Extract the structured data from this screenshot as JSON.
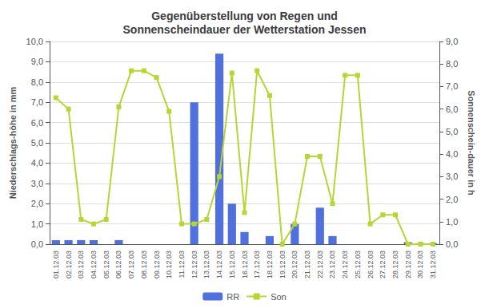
{
  "chart_data": {
    "type": "bar",
    "title": "Gegenüberstellung von Regen und\nSonnenscheindauer der Wetterstation Jessen",
    "ylabel": "Niederschlags-höhe in mm",
    "y2label": "Sonnenschein-dauer in h",
    "categories": [
      "01.12.03",
      "02.12.03",
      "03.12.03",
      "04.12.03",
      "05.12.03",
      "06.12.03",
      "07.12.03",
      "08.12.03",
      "09.12.03",
      "10.12.03",
      "11.12.03",
      "12.12.03",
      "13.12.03",
      "14.12.03",
      "15.12.03",
      "16.12.03",
      "17.12.03",
      "18.12.03",
      "19.12.03",
      "20.12.03",
      "21.12.03",
      "22.12.03",
      "23.12.03",
      "24.12.03",
      "25.12.03",
      "26.12.03",
      "27.12.03",
      "28.12.03",
      "29.12.03",
      "30.12.03",
      "31.12.03"
    ],
    "series": [
      {
        "name": "RR",
        "type": "bar",
        "values": [
          0.2,
          0.2,
          0.2,
          0.2,
          0.0,
          0.2,
          0.0,
          0.0,
          0.0,
          0.0,
          0.0,
          7.0,
          0.0,
          9.4,
          2.0,
          0.6,
          0.0,
          0.4,
          0.0,
          1.0,
          0.0,
          1.8,
          0.4,
          0.0,
          0.0,
          0.0,
          0.0,
          0.0,
          0.1,
          0.05,
          0.05
        ]
      },
      {
        "name": "Son",
        "type": "line",
        "axis": "y2",
        "marker": "square",
        "values": [
          6.5,
          6.0,
          1.1,
          0.9,
          1.1,
          6.1,
          7.7,
          7.7,
          7.4,
          5.9,
          0.9,
          0.9,
          1.1,
          3.0,
          7.6,
          1.4,
          7.7,
          6.6,
          0.0,
          0.9,
          3.9,
          3.9,
          1.8,
          7.5,
          7.5,
          0.9,
          1.3,
          1.3,
          0.0,
          0.0,
          0.0
        ]
      }
    ],
    "ylim": [
      0.0,
      10.0
    ],
    "yticks": [
      {
        "value": 0,
        "label": "0,0"
      },
      {
        "value": 1,
        "label": "1,0"
      },
      {
        "value": 2,
        "label": "2,0"
      },
      {
        "value": 3,
        "label": "3,0"
      },
      {
        "value": 4,
        "label": "4,0"
      },
      {
        "value": 5,
        "label": "5,0"
      },
      {
        "value": 6,
        "label": "6,0"
      },
      {
        "value": 7,
        "label": "7,0"
      },
      {
        "value": 8,
        "label": "8,0"
      },
      {
        "value": 9,
        "label": "9,0"
      },
      {
        "value": 10,
        "label": "10,0"
      }
    ],
    "y2lim": [
      0.0,
      9.0
    ],
    "y2ticks": [
      {
        "value": 0,
        "label": "0,0"
      },
      {
        "value": 1,
        "label": "1,0"
      },
      {
        "value": 2,
        "label": "2,0"
      },
      {
        "value": 3,
        "label": "3,0"
      },
      {
        "value": 4,
        "label": "4,0"
      },
      {
        "value": 5,
        "label": "5,0"
      },
      {
        "value": 6,
        "label": "6,0"
      },
      {
        "value": 7,
        "label": "7,0"
      },
      {
        "value": 8,
        "label": "8,0"
      },
      {
        "value": 9,
        "label": "9,0"
      }
    ],
    "grid": true,
    "legend": "bottom"
  }
}
